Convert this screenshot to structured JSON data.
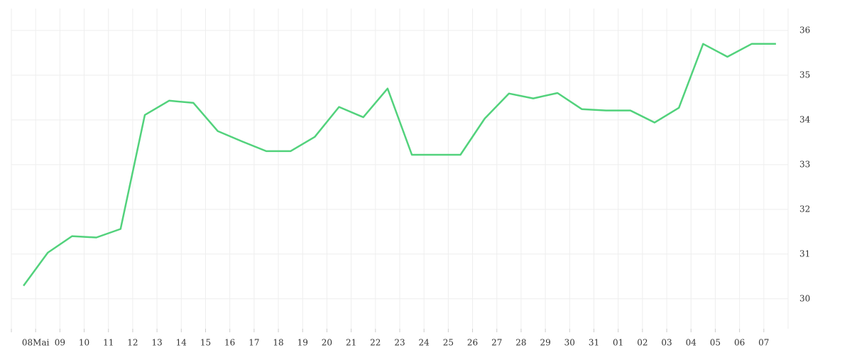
{
  "chart_data": {
    "type": "line",
    "categories": [
      null,
      "08Mai",
      "09",
      "10",
      "11",
      "12",
      "13",
      "14",
      "15",
      "16",
      "17",
      "18",
      "19",
      "20",
      "21",
      "22",
      "23",
      "24",
      "25",
      "26",
      "27",
      "28",
      "29",
      "30",
      "31",
      "01",
      "02",
      "03",
      "04",
      "05",
      "06",
      "07"
    ],
    "values": [
      30.29,
      31.03,
      31.4,
      31.37,
      31.56,
      34.11,
      34.43,
      34.38,
      33.75,
      33.52,
      33.3,
      33.3,
      33.62,
      34.29,
      34.06,
      34.7,
      33.22,
      33.22,
      33.22,
      34.03,
      34.59,
      34.48,
      34.6,
      34.24,
      34.21,
      34.21,
      33.94,
      34.27,
      35.7,
      35.41,
      35.7,
      35.7
    ],
    "color": "#52d27c",
    "ylim": [
      29.33,
      36.49
    ],
    "yticks": [
      30,
      31,
      32,
      33,
      34,
      35,
      36
    ],
    "grid": true
  }
}
